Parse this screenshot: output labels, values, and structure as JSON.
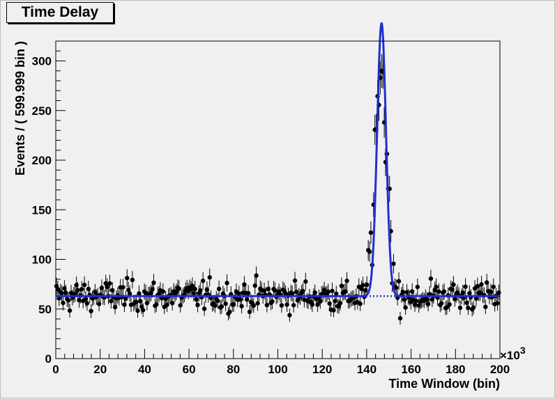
{
  "chart_data": {
    "type": "scatter",
    "title": "Time Delay",
    "xlabel": "Time Window (bin)",
    "ylabel": "Events / ( 599.999 bin )",
    "x_multiplier_label": "×10",
    "x_multiplier_exponent": "3",
    "xlim": [
      0,
      200
    ],
    "ylim": [
      0,
      320
    ],
    "x_ticks": [
      0,
      20,
      40,
      60,
      80,
      100,
      120,
      140,
      160,
      180,
      200
    ],
    "y_ticks": [
      0,
      50,
      100,
      150,
      200,
      250,
      300
    ],
    "grid": false,
    "legend": "none",
    "colors": {
      "data_points": "#000000",
      "fit_line": "#1f2fd0",
      "background": "#f0f0f0",
      "frame": "#000000"
    },
    "series": [
      {
        "kind": "points_with_error_bars",
        "bin_width": 0.6,
        "x_start": 0.3,
        "background_mean": 63,
        "peak_values": {
          "141": 108,
          "142": 128,
          "143": 157,
          "144": 230,
          "145": 265,
          "146": 282,
          "147": 290,
          "148": 240,
          "149": 205,
          "150": 170,
          "151": 130,
          "152": 95,
          "153": 72,
          "154": 60,
          "155": 41
        }
      },
      {
        "kind": "fit_curve",
        "style": "solid",
        "baseline": 63,
        "peak_x": 146.7,
        "peak_height": 275,
        "sigma": 2.0
      },
      {
        "kind": "background_fit",
        "style": "dotted",
        "level": 63
      }
    ]
  }
}
